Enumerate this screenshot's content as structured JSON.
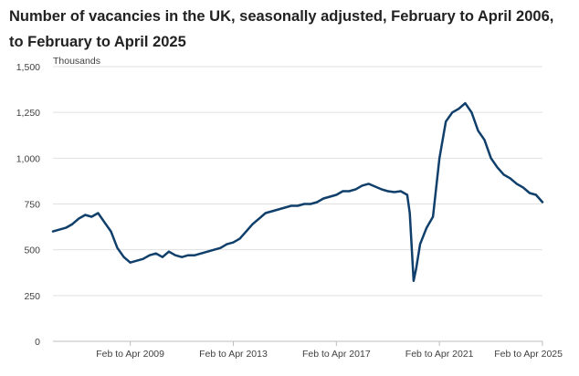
{
  "chart_data": {
    "type": "line",
    "title": "Number of vacancies in the UK, seasonally adjusted, February to April 2006, to February to April 2025",
    "ylabel": "Thousands",
    "xlabel": "",
    "ylim": [
      0,
      1500
    ],
    "yticks": [
      "0",
      "250",
      "500",
      "750",
      "1,000",
      "1,250",
      "1,500"
    ],
    "ytick_values": [
      0,
      250,
      500,
      750,
      1000,
      1250,
      1500
    ],
    "xlim": [
      2006.25,
      2025.25
    ],
    "xticks": [
      {
        "label": "Feb to Apr 2009",
        "value": 2009.25
      },
      {
        "label": "Feb to Apr 2013",
        "value": 2013.25
      },
      {
        "label": "Feb to Apr 2017",
        "value": 2017.25
      },
      {
        "label": "Feb to Apr 2021",
        "value": 2021.25
      },
      {
        "label": "Feb to Apr 2025",
        "value": 2025.25
      }
    ],
    "grid": true,
    "line_color": "#0f3f6a",
    "series": [
      {
        "x": [
          2006.25,
          2006.5,
          2006.75,
          2007.0,
          2007.25,
          2007.5,
          2007.75,
          2008.0,
          2008.25,
          2008.5,
          2008.75,
          2009.0,
          2009.25,
          2009.5,
          2009.75,
          2010.0,
          2010.25,
          2010.5,
          2010.75,
          2011.0,
          2011.25,
          2011.5,
          2011.75,
          2012.0,
          2012.25,
          2012.5,
          2012.75,
          2013.0,
          2013.25,
          2013.5,
          2013.75,
          2014.0,
          2014.25,
          2014.5,
          2014.75,
          2015.0,
          2015.25,
          2015.5,
          2015.75,
          2016.0,
          2016.25,
          2016.5,
          2016.75,
          2017.0,
          2017.25,
          2017.5,
          2017.75,
          2018.0,
          2018.25,
          2018.5,
          2018.75,
          2019.0,
          2019.25,
          2019.5,
          2019.75,
          2020.0,
          2020.1,
          2020.25,
          2020.35,
          2020.5,
          2020.75,
          2021.0,
          2021.25,
          2021.5,
          2021.75,
          2022.0,
          2022.25,
          2022.5,
          2022.75,
          2023.0,
          2023.25,
          2023.5,
          2023.75,
          2024.0,
          2024.25,
          2024.5,
          2024.75,
          2025.0,
          2025.25
        ],
        "values": [
          600,
          610,
          620,
          640,
          670,
          690,
          680,
          700,
          650,
          600,
          510,
          460,
          430,
          440,
          450,
          470,
          480,
          460,
          490,
          470,
          460,
          470,
          470,
          480,
          490,
          500,
          510,
          530,
          540,
          560,
          600,
          640,
          670,
          700,
          710,
          720,
          730,
          740,
          740,
          750,
          750,
          760,
          780,
          790,
          800,
          820,
          820,
          830,
          850,
          860,
          845,
          830,
          820,
          815,
          820,
          800,
          700,
          330,
          400,
          530,
          620,
          680,
          1000,
          1200,
          1250,
          1270,
          1300,
          1250,
          1150,
          1100,
          1000,
          950,
          910,
          890,
          860,
          840,
          810,
          800,
          760
        ]
      }
    ]
  }
}
